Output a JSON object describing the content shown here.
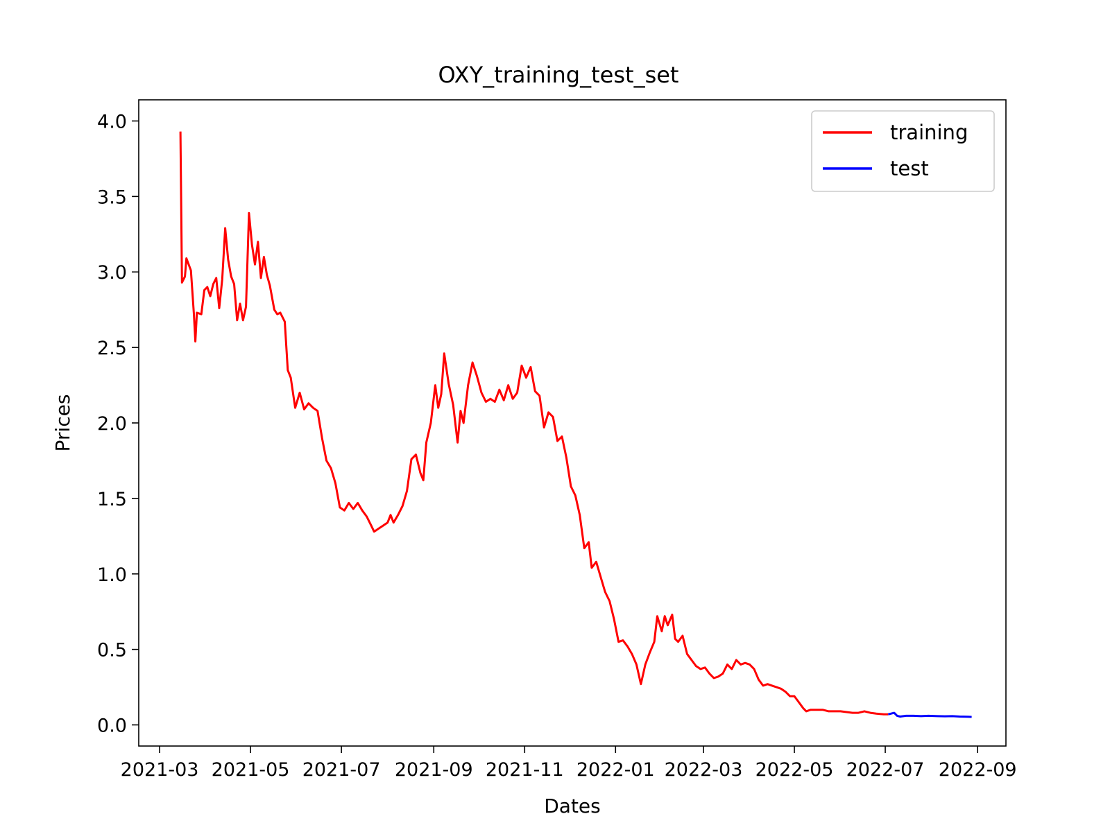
{
  "chart_data": {
    "type": "line",
    "title": "OXY_training_test_set",
    "xlabel": "Dates",
    "ylabel": "Prices",
    "xlim": [
      "2021-02-15",
      "2022-09-20"
    ],
    "ylim": [
      -0.14,
      4.14
    ],
    "x_ticks": [
      "2021-03",
      "2021-05",
      "2021-07",
      "2021-09",
      "2021-11",
      "2022-01",
      "2022-03",
      "2022-05",
      "2022-07",
      "2022-09"
    ],
    "y_ticks": [
      "0.0",
      "0.5",
      "1.0",
      "1.5",
      "2.0",
      "2.5",
      "3.0",
      "3.5",
      "4.0"
    ],
    "legend_position": "top-right",
    "grid": false,
    "series": [
      {
        "name": "training",
        "color": "#ff0000",
        "points": [
          [
            "2021-03-15",
            3.93
          ],
          [
            "2021-03-16",
            2.93
          ],
          [
            "2021-03-18",
            2.97
          ],
          [
            "2021-03-19",
            3.09
          ],
          [
            "2021-03-22",
            3.01
          ],
          [
            "2021-03-24",
            2.72
          ],
          [
            "2021-03-25",
            2.54
          ],
          [
            "2021-03-26",
            2.73
          ],
          [
            "2021-03-29",
            2.72
          ],
          [
            "2021-03-31",
            2.88
          ],
          [
            "2021-04-02",
            2.9
          ],
          [
            "2021-04-04",
            2.84
          ],
          [
            "2021-04-06",
            2.92
          ],
          [
            "2021-04-08",
            2.96
          ],
          [
            "2021-04-10",
            2.76
          ],
          [
            "2021-04-12",
            2.95
          ],
          [
            "2021-04-14",
            3.29
          ],
          [
            "2021-04-16",
            3.08
          ],
          [
            "2021-04-18",
            2.97
          ],
          [
            "2021-04-20",
            2.92
          ],
          [
            "2021-04-22",
            2.68
          ],
          [
            "2021-04-24",
            2.79
          ],
          [
            "2021-04-26",
            2.68
          ],
          [
            "2021-04-28",
            2.77
          ],
          [
            "2021-04-30",
            3.39
          ],
          [
            "2021-05-02",
            3.18
          ],
          [
            "2021-05-04",
            3.05
          ],
          [
            "2021-05-06",
            3.2
          ],
          [
            "2021-05-08",
            2.96
          ],
          [
            "2021-05-10",
            3.1
          ],
          [
            "2021-05-12",
            2.98
          ],
          [
            "2021-05-14",
            2.91
          ],
          [
            "2021-05-17",
            2.75
          ],
          [
            "2021-05-19",
            2.72
          ],
          [
            "2021-05-21",
            2.73
          ],
          [
            "2021-05-24",
            2.67
          ],
          [
            "2021-05-26",
            2.35
          ],
          [
            "2021-05-28",
            2.3
          ],
          [
            "2021-05-31",
            2.1
          ],
          [
            "2021-06-03",
            2.2
          ],
          [
            "2021-06-06",
            2.09
          ],
          [
            "2021-06-09",
            2.13
          ],
          [
            "2021-06-12",
            2.1
          ],
          [
            "2021-06-15",
            2.08
          ],
          [
            "2021-06-18",
            1.9
          ],
          [
            "2021-06-21",
            1.75
          ],
          [
            "2021-06-24",
            1.7
          ],
          [
            "2021-06-27",
            1.6
          ],
          [
            "2021-06-30",
            1.44
          ],
          [
            "2021-07-03",
            1.42
          ],
          [
            "2021-07-06",
            1.47
          ],
          [
            "2021-07-09",
            1.43
          ],
          [
            "2021-07-12",
            1.47
          ],
          [
            "2021-07-15",
            1.42
          ],
          [
            "2021-07-18",
            1.38
          ],
          [
            "2021-07-21",
            1.32
          ],
          [
            "2021-07-23",
            1.28
          ],
          [
            "2021-07-26",
            1.3
          ],
          [
            "2021-07-29",
            1.32
          ],
          [
            "2021-08-01",
            1.34
          ],
          [
            "2021-08-03",
            1.39
          ],
          [
            "2021-08-05",
            1.34
          ],
          [
            "2021-08-08",
            1.39
          ],
          [
            "2021-08-11",
            1.45
          ],
          [
            "2021-08-14",
            1.55
          ],
          [
            "2021-08-17",
            1.76
          ],
          [
            "2021-08-20",
            1.79
          ],
          [
            "2021-08-23",
            1.67
          ],
          [
            "2021-08-25",
            1.62
          ],
          [
            "2021-08-27",
            1.87
          ],
          [
            "2021-08-30",
            2.0
          ],
          [
            "2021-09-02",
            2.25
          ],
          [
            "2021-09-04",
            2.1
          ],
          [
            "2021-09-06",
            2.19
          ],
          [
            "2021-09-08",
            2.46
          ],
          [
            "2021-09-11",
            2.26
          ],
          [
            "2021-09-14",
            2.12
          ],
          [
            "2021-09-17",
            1.87
          ],
          [
            "2021-09-19",
            2.08
          ],
          [
            "2021-09-21",
            2.0
          ],
          [
            "2021-09-24",
            2.25
          ],
          [
            "2021-09-27",
            2.4
          ],
          [
            "2021-09-30",
            2.31
          ],
          [
            "2021-10-03",
            2.2
          ],
          [
            "2021-10-06",
            2.14
          ],
          [
            "2021-10-09",
            2.16
          ],
          [
            "2021-10-12",
            2.14
          ],
          [
            "2021-10-15",
            2.22
          ],
          [
            "2021-10-18",
            2.15
          ],
          [
            "2021-10-21",
            2.25
          ],
          [
            "2021-10-24",
            2.16
          ],
          [
            "2021-10-27",
            2.2
          ],
          [
            "2021-10-30",
            2.38
          ],
          [
            "2021-11-02",
            2.3
          ],
          [
            "2021-11-05",
            2.37
          ],
          [
            "2021-11-08",
            2.21
          ],
          [
            "2021-11-11",
            2.18
          ],
          [
            "2021-11-14",
            1.97
          ],
          [
            "2021-11-17",
            2.07
          ],
          [
            "2021-11-20",
            2.04
          ],
          [
            "2021-11-23",
            1.88
          ],
          [
            "2021-11-26",
            1.91
          ],
          [
            "2021-11-29",
            1.77
          ],
          [
            "2021-12-02",
            1.58
          ],
          [
            "2021-12-05",
            1.52
          ],
          [
            "2021-12-08",
            1.39
          ],
          [
            "2021-12-11",
            1.17
          ],
          [
            "2021-12-14",
            1.21
          ],
          [
            "2021-12-16",
            1.04
          ],
          [
            "2021-12-19",
            1.08
          ],
          [
            "2021-12-22",
            0.98
          ],
          [
            "2021-12-25",
            0.88
          ],
          [
            "2021-12-28",
            0.82
          ],
          [
            "2021-12-31",
            0.7
          ],
          [
            "2022-01-03",
            0.55
          ],
          [
            "2022-01-06",
            0.56
          ],
          [
            "2022-01-09",
            0.52
          ],
          [
            "2022-01-12",
            0.47
          ],
          [
            "2022-01-15",
            0.4
          ],
          [
            "2022-01-18",
            0.27
          ],
          [
            "2022-01-21",
            0.4
          ],
          [
            "2022-01-24",
            0.48
          ],
          [
            "2022-01-27",
            0.55
          ],
          [
            "2022-01-29",
            0.72
          ],
          [
            "2022-02-01",
            0.62
          ],
          [
            "2022-02-03",
            0.72
          ],
          [
            "2022-02-05",
            0.66
          ],
          [
            "2022-02-08",
            0.73
          ],
          [
            "2022-02-10",
            0.57
          ],
          [
            "2022-02-12",
            0.55
          ],
          [
            "2022-02-15",
            0.59
          ],
          [
            "2022-02-18",
            0.47
          ],
          [
            "2022-02-21",
            0.43
          ],
          [
            "2022-02-24",
            0.39
          ],
          [
            "2022-02-27",
            0.37
          ],
          [
            "2022-03-02",
            0.38
          ],
          [
            "2022-03-05",
            0.34
          ],
          [
            "2022-03-08",
            0.31
          ],
          [
            "2022-03-11",
            0.32
          ],
          [
            "2022-03-14",
            0.34
          ],
          [
            "2022-03-17",
            0.4
          ],
          [
            "2022-03-20",
            0.37
          ],
          [
            "2022-03-23",
            0.43
          ],
          [
            "2022-03-26",
            0.4
          ],
          [
            "2022-03-29",
            0.41
          ],
          [
            "2022-04-01",
            0.4
          ],
          [
            "2022-04-04",
            0.37
          ],
          [
            "2022-04-07",
            0.3
          ],
          [
            "2022-04-10",
            0.26
          ],
          [
            "2022-04-13",
            0.27
          ],
          [
            "2022-04-16",
            0.26
          ],
          [
            "2022-04-19",
            0.25
          ],
          [
            "2022-04-22",
            0.24
          ],
          [
            "2022-04-25",
            0.22
          ],
          [
            "2022-04-28",
            0.19
          ],
          [
            "2022-05-01",
            0.19
          ],
          [
            "2022-05-04",
            0.15
          ],
          [
            "2022-05-07",
            0.11
          ],
          [
            "2022-05-09",
            0.09
          ],
          [
            "2022-05-12",
            0.1
          ],
          [
            "2022-05-16",
            0.1
          ],
          [
            "2022-05-20",
            0.1
          ],
          [
            "2022-05-24",
            0.09
          ],
          [
            "2022-05-28",
            0.09
          ],
          [
            "2022-06-01",
            0.09
          ],
          [
            "2022-06-05",
            0.085
          ],
          [
            "2022-06-09",
            0.08
          ],
          [
            "2022-06-13",
            0.08
          ],
          [
            "2022-06-17",
            0.09
          ],
          [
            "2022-06-21",
            0.08
          ],
          [
            "2022-06-25",
            0.075
          ],
          [
            "2022-06-30",
            0.07
          ],
          [
            "2022-07-03",
            0.07
          ]
        ]
      },
      {
        "name": "test",
        "color": "#0000ff",
        "points": [
          [
            "2022-07-03",
            0.07
          ],
          [
            "2022-07-05",
            0.075
          ],
          [
            "2022-07-07",
            0.08
          ],
          [
            "2022-07-09",
            0.06
          ],
          [
            "2022-07-11",
            0.055
          ],
          [
            "2022-07-15",
            0.06
          ],
          [
            "2022-07-20",
            0.06
          ],
          [
            "2022-07-25",
            0.058
          ],
          [
            "2022-07-30",
            0.06
          ],
          [
            "2022-08-05",
            0.058
          ],
          [
            "2022-08-10",
            0.057
          ],
          [
            "2022-08-15",
            0.058
          ],
          [
            "2022-08-20",
            0.055
          ],
          [
            "2022-08-25",
            0.054
          ],
          [
            "2022-08-28",
            0.053
          ]
        ]
      }
    ]
  }
}
